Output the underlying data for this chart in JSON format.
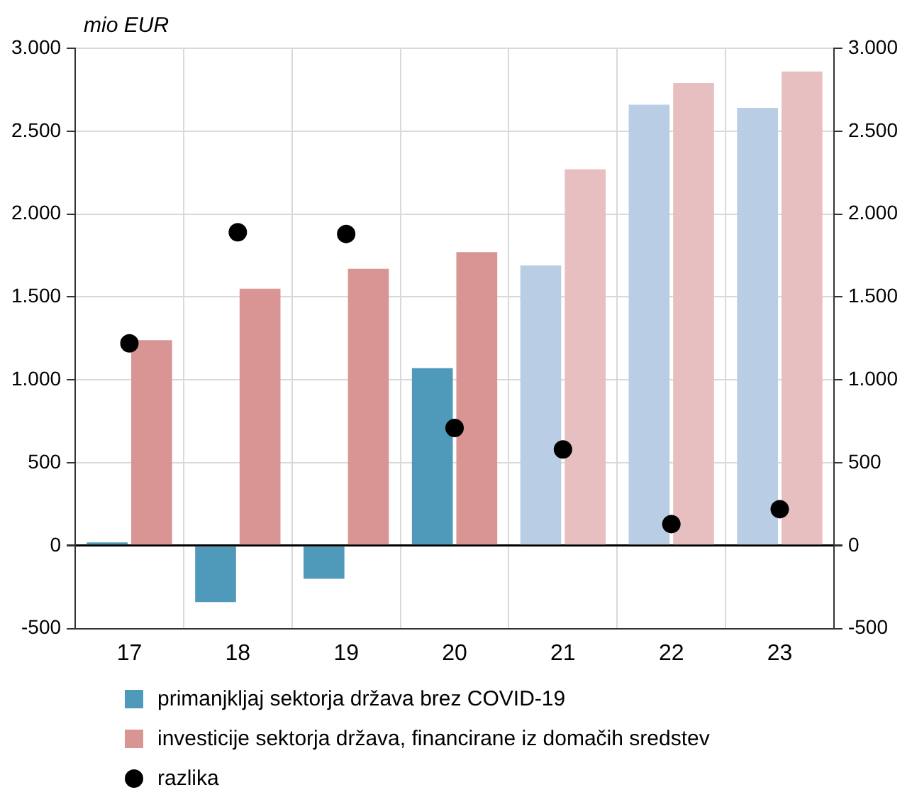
{
  "chart_data": {
    "type": "bar",
    "ylabel": "mio EUR",
    "categories": [
      "17",
      "18",
      "19",
      "20",
      "21",
      "22",
      "23"
    ],
    "series": [
      {
        "name": "primanjkljaj sektorja država brez COVID-19",
        "color": "#4f9aba",
        "colors": [
          "#4f9aba",
          "#4f9aba",
          "#4f9aba",
          "#4f9aba",
          "#b9cde4",
          "#b9cde4",
          "#b9cde4"
        ],
        "values": [
          20,
          -340,
          -200,
          1070,
          1690,
          2660,
          2640
        ]
      },
      {
        "name": "investicije sektorja država, financirane iz domačih sredstev",
        "color": "#d99594",
        "colors": [
          "#d99594",
          "#d99594",
          "#d99594",
          "#d99594",
          "#e8bfc0",
          "#e8bfc0",
          "#e8bfc0"
        ],
        "values": [
          1240,
          1550,
          1670,
          1770,
          2270,
          2790,
          2860
        ]
      },
      {
        "name": "razlika",
        "type": "scatter",
        "color": "#000000",
        "x": [
          "17",
          "18",
          "19",
          "20",
          "21",
          "22",
          "23"
        ],
        "values": [
          1220,
          1890,
          1880,
          710,
          580,
          130,
          220
        ]
      }
    ],
    "ylim": [
      -500,
      3000
    ],
    "yticks": [
      {
        "value": -500,
        "label": "-500"
      },
      {
        "value": 0,
        "label": "0"
      },
      {
        "value": 500,
        "label": "500"
      },
      {
        "value": 1000,
        "label": "1.000"
      },
      {
        "value": 1500,
        "label": "1.500"
      },
      {
        "value": 2000,
        "label": "2.000"
      },
      {
        "value": 2500,
        "label": "2.500"
      },
      {
        "value": 3000,
        "label": "3.000"
      }
    ],
    "y2lim": [
      -500,
      3000
    ],
    "y2ticks": [
      {
        "value": -500,
        "label": "-500"
      },
      {
        "value": 0,
        "label": "0"
      },
      {
        "value": 500,
        "label": "500"
      },
      {
        "value": 1000,
        "label": "1.000"
      },
      {
        "value": 1500,
        "label": "1.500"
      },
      {
        "value": 2000,
        "label": "2.000"
      },
      {
        "value": 2500,
        "label": "2.500"
      },
      {
        "value": 3000,
        "label": "3.000"
      }
    ],
    "grid": true,
    "legend": "bottom",
    "marker": "circle"
  }
}
